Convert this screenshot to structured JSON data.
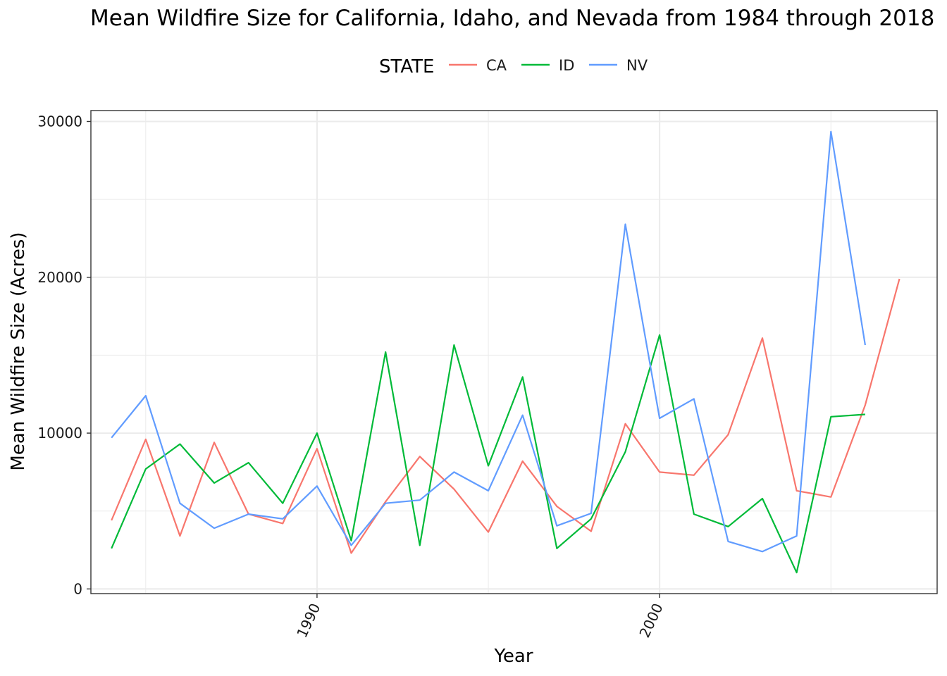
{
  "chart_data": {
    "type": "line",
    "title": "Mean Wildfire Size for California, Idaho, and Nevada from 1984 through 2018",
    "xlabel": "Year",
    "ylabel": "Mean Wildfire Size (Acres)",
    "legend_title": "STATE",
    "legend_position": "top",
    "grid": true,
    "xlim": [
      1983.4,
      2008.1
    ],
    "ylim": [
      -300,
      30700
    ],
    "x_ticks": [
      1990,
      2000
    ],
    "x_tick_labels": [
      "1990",
      "2000"
    ],
    "x_minor_ticks": [
      1985,
      1995,
      2005
    ],
    "y_ticks": [
      0,
      10000,
      20000,
      30000
    ],
    "y_tick_labels": [
      "0",
      "10000",
      "20000",
      "30000"
    ],
    "y_minor_ticks": [
      5000,
      15000,
      25000
    ],
    "series": [
      {
        "name": "CA",
        "color": "#F8766D",
        "x": [
          1984,
          1985,
          1986,
          1987,
          1988,
          1989,
          1990,
          1991,
          1992,
          1993,
          1994,
          1995,
          1996,
          1997,
          1998,
          1999,
          2000,
          2001,
          2002,
          2003,
          2004,
          2005,
          2006,
          2007
        ],
        "values": [
          4400,
          9600,
          3400,
          9400,
          4800,
          4200,
          9000,
          2300,
          5600,
          8500,
          6400,
          3650,
          8200,
          5300,
          3700,
          10600,
          7500,
          7300,
          9900,
          16100,
          6300,
          5900,
          11800,
          19900
        ]
      },
      {
        "name": "ID",
        "color": "#00BA38",
        "x": [
          1984,
          1985,
          1986,
          1987,
          1988,
          1989,
          1990,
          1991,
          1992,
          1993,
          1994,
          1995,
          1996,
          1997,
          1998,
          1999,
          2000,
          2001,
          2002,
          2003,
          2004,
          2005,
          2006
        ],
        "values": [
          2600,
          7700,
          9300,
          6800,
          8100,
          5500,
          10000,
          3100,
          15200,
          2800,
          15650,
          7900,
          13600,
          2600,
          4500,
          8800,
          16300,
          4800,
          4000,
          5800,
          1050,
          11050,
          11200
        ]
      },
      {
        "name": "NV",
        "color": "#619CFF",
        "x": [
          1984,
          1985,
          1986,
          1987,
          1988,
          1989,
          1990,
          1991,
          1992,
          1993,
          1994,
          1995,
          1996,
          1997,
          1998,
          1999,
          2000,
          2001,
          2002,
          2003,
          2004,
          2005,
          2006
        ],
        "values": [
          9700,
          12400,
          5500,
          3900,
          4800,
          4500,
          6600,
          2800,
          5500,
          5700,
          7500,
          6300,
          11150,
          4050,
          4850,
          23400,
          10950,
          12200,
          3050,
          2400,
          3400,
          29350,
          15650
        ]
      }
    ]
  }
}
